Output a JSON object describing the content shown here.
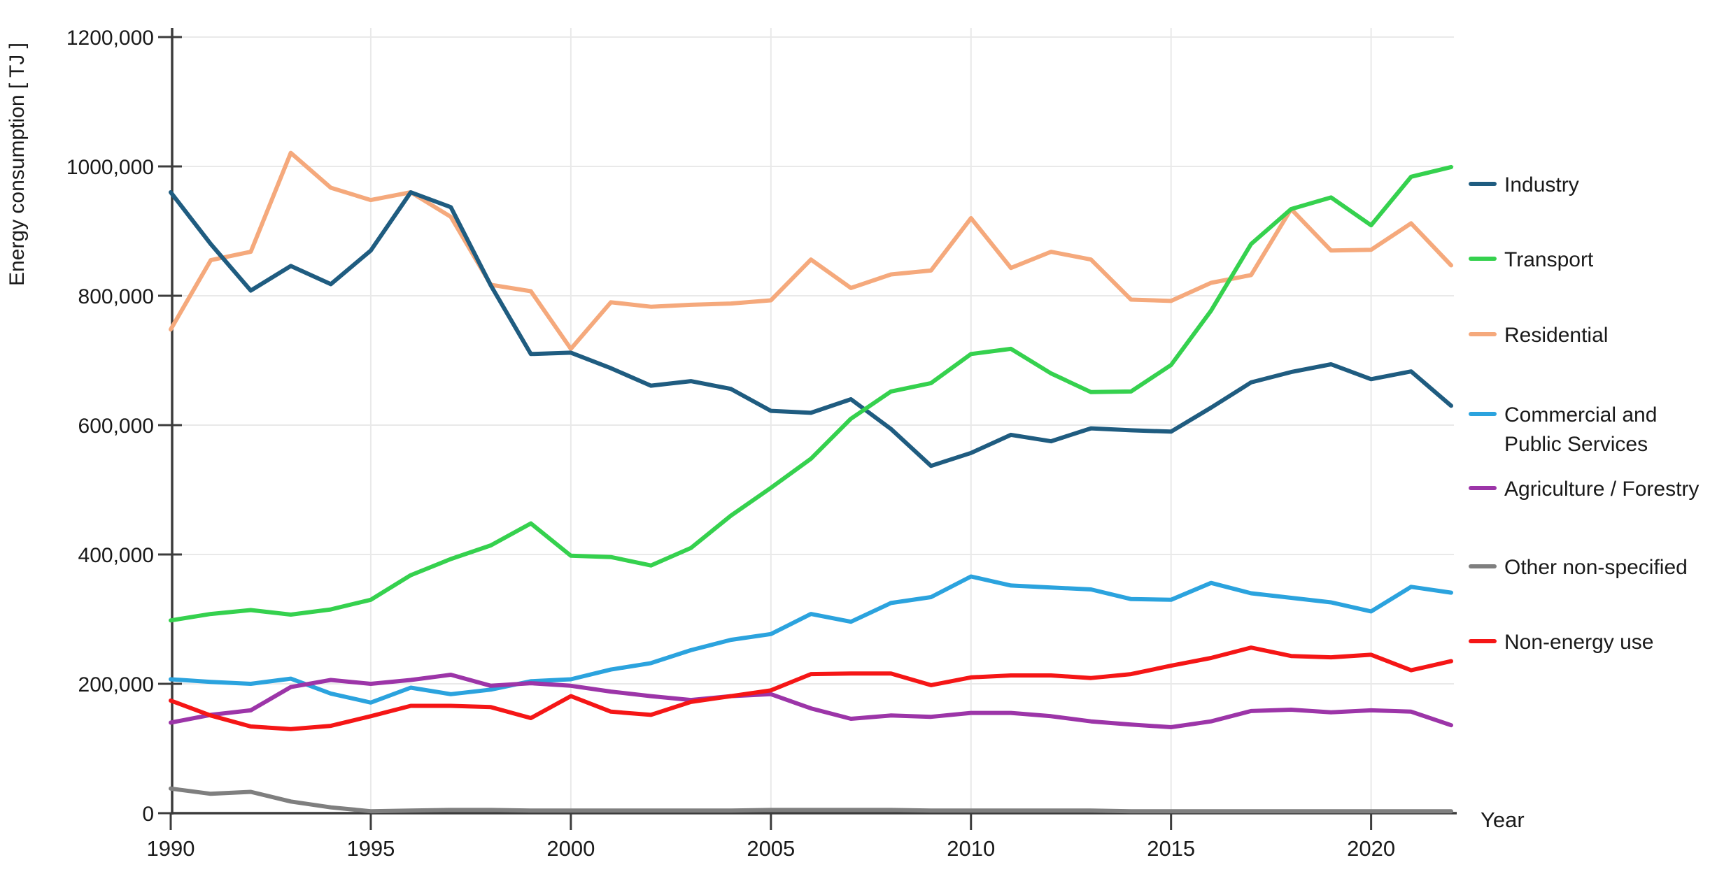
{
  "chart_data": {
    "type": "line",
    "xlabel": "Year",
    "ylabel": "Energy consumption [ TJ ]",
    "x": [
      1990,
      1991,
      1992,
      1993,
      1994,
      1995,
      1996,
      1997,
      1998,
      1999,
      2000,
      2001,
      2002,
      2003,
      2004,
      2005,
      2006,
      2007,
      2008,
      2009,
      2010,
      2011,
      2012,
      2013,
      2014,
      2015,
      2016,
      2017,
      2018,
      2019,
      2020,
      2021,
      2022
    ],
    "xlim": [
      1990,
      2022
    ],
    "ylim": [
      0,
      1200000
    ],
    "x_ticks": [
      1990,
      1995,
      2000,
      2005,
      2010,
      2015,
      2020
    ],
    "x_tick_labels": [
      "1990",
      "1995",
      "2000",
      "2005",
      "2010",
      "2015",
      "2020"
    ],
    "y_ticks": [
      0,
      200000,
      400000,
      600000,
      800000,
      1000000,
      1200000
    ],
    "y_tick_labels": [
      "0",
      "200,000",
      "400,000",
      "600,000",
      "800,000",
      "1000,000",
      "1200,000"
    ],
    "grid": true,
    "legend_position": "right",
    "style": {
      "background": "#ffffff",
      "grid_color": "#e9e9e9",
      "axis_color": "#3c3c3c",
      "text_color": "#1a1a1a"
    },
    "series": [
      {
        "name": "Industry",
        "label_lines": [
          "Industry"
        ],
        "color": "#1f5c80",
        "values": [
          960000,
          880000,
          808000,
          846000,
          818000,
          870000,
          960000,
          937000,
          816000,
          710000,
          712000,
          688000,
          661000,
          668000,
          656000,
          622000,
          619000,
          640000,
          594000,
          537000,
          557000,
          585000,
          575000,
          595000,
          592000,
          590000,
          627000,
          666000,
          682000,
          694000,
          671000,
          683000,
          630000
        ]
      },
      {
        "name": "Transport",
        "label_lines": [
          "Transport"
        ],
        "color": "#35d14e",
        "values": [
          298000,
          308000,
          314000,
          307000,
          315000,
          330000,
          368000,
          393000,
          414000,
          448000,
          398000,
          396000,
          383000,
          410000,
          460000,
          503000,
          548000,
          610000,
          652000,
          665000,
          710000,
          718000,
          680000,
          651000,
          652000,
          693000,
          777000,
          880000,
          934000,
          952000,
          909000,
          984000,
          999000
        ]
      },
      {
        "name": "Residential",
        "label_lines": [
          "Residential"
        ],
        "color": "#f5a97c",
        "values": [
          748000,
          855000,
          868000,
          1021000,
          967000,
          948000,
          960000,
          922000,
          817000,
          807000,
          718000,
          790000,
          783000,
          786000,
          788000,
          793000,
          856000,
          812000,
          833000,
          839000,
          920000,
          843000,
          868000,
          856000,
          794000,
          792000,
          820000,
          832000,
          934000,
          870000,
          871000,
          912000,
          847000
        ]
      },
      {
        "name": "Commercial and Public Services",
        "label_lines": [
          "Commercial and",
          "Public Services"
        ],
        "color": "#2ba3de",
        "values": [
          207000,
          203000,
          200000,
          208000,
          185000,
          171000,
          194000,
          184000,
          191000,
          204000,
          207000,
          222000,
          232000,
          252000,
          268000,
          277000,
          308000,
          296000,
          325000,
          334000,
          366000,
          352000,
          349000,
          346000,
          331000,
          330000,
          356000,
          340000,
          333000,
          326000,
          312000,
          350000,
          341000
        ]
      },
      {
        "name": "Agriculture / Forestry",
        "label_lines": [
          "Agriculture / Forestry"
        ],
        "color": "#9c35a8",
        "values": [
          140000,
          152000,
          159000,
          195000,
          206000,
          200000,
          206000,
          214000,
          197000,
          201000,
          197000,
          188000,
          181000,
          175000,
          181000,
          184000,
          162000,
          146000,
          151000,
          149000,
          155000,
          155000,
          150000,
          142000,
          137000,
          133000,
          142000,
          158000,
          160000,
          156000,
          159000,
          157000,
          136000
        ]
      },
      {
        "name": "Other non-specified",
        "label_lines": [
          "Other non-specified"
        ],
        "color": "#7f7f7f",
        "values": [
          38000,
          30000,
          33000,
          18000,
          9000,
          3000,
          4000,
          5000,
          5000,
          4000,
          4000,
          4000,
          4000,
          4000,
          4000,
          5000,
          5000,
          5000,
          5000,
          4000,
          4000,
          4000,
          4000,
          4000,
          3000,
          3000,
          3000,
          3000,
          3000,
          3000,
          3000,
          3000,
          3000
        ]
      },
      {
        "name": "Non-energy use",
        "label_lines": [
          "Non-energy use"
        ],
        "color": "#f51616",
        "values": [
          174000,
          151000,
          134000,
          130000,
          135000,
          150000,
          166000,
          166000,
          164000,
          147000,
          181000,
          157000,
          152000,
          172000,
          181000,
          190000,
          215000,
          216000,
          216000,
          198000,
          210000,
          213000,
          213000,
          209000,
          215000,
          228000,
          240000,
          256000,
          243000,
          241000,
          245000,
          221000,
          235000
        ]
      }
    ]
  }
}
